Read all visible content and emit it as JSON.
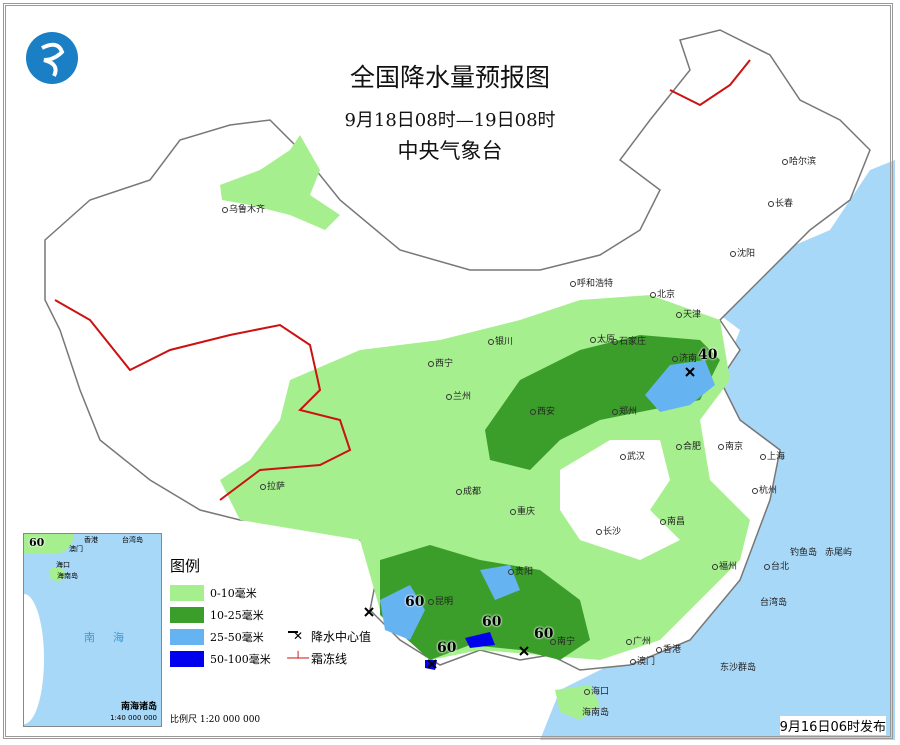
{
  "header": {
    "title": "全国降水量预报图",
    "period": "9月18日08时—19日08时",
    "issuer": "中央气象台"
  },
  "colors": {
    "sea": "#a8d8f8",
    "light_green": "#a6ef8f",
    "dark_green": "#3c9e2a",
    "light_blue": "#66b3f2",
    "blue": "#0000ee",
    "frost": "#cc1111"
  },
  "legend": {
    "title": "图例",
    "items": [
      {
        "label": "0-10毫米",
        "color": "#a6ef8f"
      },
      {
        "label": "10-25毫米",
        "color": "#3c9e2a"
      },
      {
        "label": "25-50毫米",
        "color": "#66b3f2"
      },
      {
        "label": "50-100毫米",
        "color": "#0000ee"
      }
    ],
    "center_label": "降水中心值",
    "frost_label": "霜冻线"
  },
  "scale": "比例尺  1:20 000 000",
  "inset": {
    "name": "南海诸岛",
    "scale": "1:40 000 000",
    "sea": "南海",
    "value": "60",
    "labels": [
      "香港",
      "澳门",
      "台湾岛",
      "海口",
      "海南岛"
    ]
  },
  "values": [
    "60",
    "60",
    "60",
    "60",
    "40"
  ],
  "cities": [
    "乌鲁木齐",
    "哈尔滨",
    "长春",
    "沈阳",
    "北京",
    "天津",
    "呼和浩特",
    "石家庄",
    "太原",
    "银川",
    "西宁",
    "兰州",
    "济南",
    "郑州",
    "西安",
    "合肥",
    "南京",
    "上海",
    "杭州",
    "武汉",
    "成都",
    "重庆",
    "拉萨",
    "长沙",
    "南昌",
    "福州",
    "台北",
    "贵阳",
    "昆明",
    "南宁",
    "广州",
    "香港",
    "澳门",
    "海口"
  ],
  "places": [
    "台湾岛",
    "海南岛",
    "钓鱼岛",
    "赤尾屿",
    "东沙群岛"
  ],
  "issued": "9月16日06时发布"
}
